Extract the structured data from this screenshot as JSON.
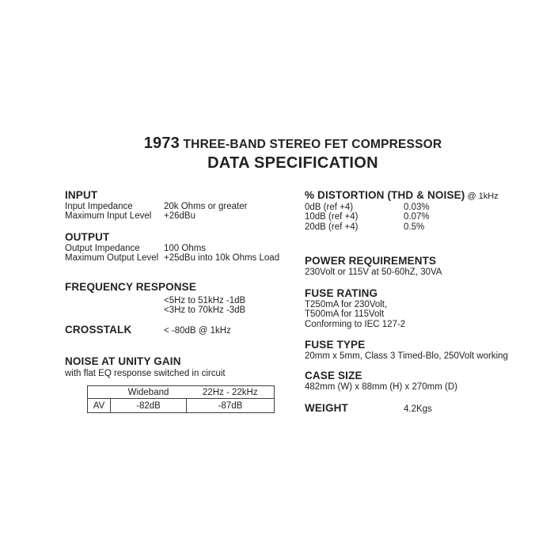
{
  "title": {
    "model": "1973",
    "rest": "THREE-BAND STEREO FET COMPRESSOR",
    "subtitle": "DATA SPECIFICATION"
  },
  "left": {
    "input": {
      "heading": "INPUT",
      "rows": [
        {
          "label": "Input Impedance",
          "value": "20k Ohms or greater"
        },
        {
          "label": "Maximum Input Level",
          "value": "+26dBu"
        }
      ]
    },
    "output": {
      "heading": "OUTPUT",
      "rows": [
        {
          "label": "Output Impedance",
          "value": "100 Ohms"
        },
        {
          "label": "Maximum Output Level",
          "value": "+25dBu into 10k Ohms Load"
        }
      ]
    },
    "frequency_response": {
      "heading": "FREQUENCY RESPONSE",
      "lines": [
        "<5Hz to 51kHz -1dB",
        "<3Hz to 70kHz -3dB"
      ]
    },
    "crosstalk": {
      "heading": "CROSSTALK",
      "value": "< -80dB @ 1kHz"
    },
    "noise": {
      "heading": "NOISE AT UNITY GAIN",
      "note": "with flat EQ response switched in circuit",
      "table": {
        "col_headers": [
          "Wideband",
          "22Hz - 22kHz"
        ],
        "row_label": "AV",
        "values": [
          "-82dB",
          "-87dB"
        ]
      }
    }
  },
  "right": {
    "distortion": {
      "heading": "% DISTORTION (THD & NOISE)",
      "heading_suffix": " @ 1kHz",
      "rows": [
        {
          "label": "0dB (ref +4)",
          "value": "0.03%"
        },
        {
          "label": "10dB (ref +4)",
          "value": "0.07%"
        },
        {
          "label": "20dB (ref +4)",
          "value": "0.5%"
        }
      ]
    },
    "power": {
      "heading": "POWER REQUIREMENTS",
      "lines": [
        "230Volt or 115V at 50-60hZ, 30VA"
      ]
    },
    "fuse_rating": {
      "heading": "FUSE RATING",
      "lines": [
        "T250mA for 230Volt,",
        "T500mA for 115Volt",
        "Conforming to IEC 127-2"
      ]
    },
    "fuse_type": {
      "heading": "FUSE TYPE",
      "lines": [
        "20mm x 5mm, Class 3 Timed-Blo, 250Volt working"
      ]
    },
    "case_size": {
      "heading": "CASE SIZE",
      "lines": [
        "482mm (W) x 88mm (H) x 270mm (D)"
      ]
    },
    "weight": {
      "heading": "WEIGHT",
      "value": "4.2Kgs"
    }
  },
  "colors": {
    "text": "#262220",
    "background": "#ffffff",
    "table_border": "#3d3d3d"
  }
}
